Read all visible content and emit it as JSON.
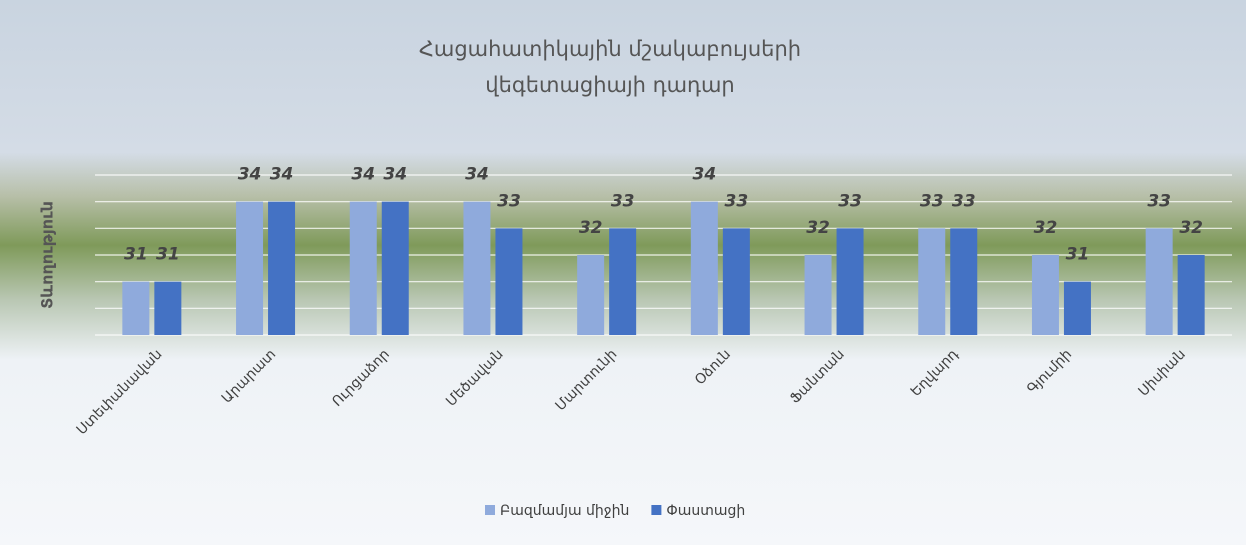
{
  "chart_data": {
    "type": "bar",
    "title_lines": [
      "Հացահատիկային մշակաբույսերի",
      "վեգետացիայի դադար"
    ],
    "y_label": "Տևողություն",
    "categories": [
      "Ստեփանավան",
      "Արարատ",
      "Ուրցաձոր",
      "Մեծավան",
      "Մարտունի",
      "Օձուն",
      "Ֆանտան",
      "Եղվարդ",
      "Գյումրի",
      "Սիսիան"
    ],
    "series": [
      {
        "name": "Բազմամյա միջին",
        "color": "#8faadc",
        "values": [
          31,
          34,
          34,
          34,
          32,
          34,
          32,
          33,
          32,
          33
        ]
      },
      {
        "name": "Փաստացի",
        "color": "#4472c4",
        "values": [
          31,
          34,
          34,
          33,
          33,
          33,
          33,
          33,
          31,
          32
        ]
      }
    ],
    "ylim": [
      29,
      35
    ],
    "yticks": [
      29,
      30,
      31,
      32,
      33,
      34,
      35
    ],
    "grid": true,
    "legend": "bottom"
  }
}
